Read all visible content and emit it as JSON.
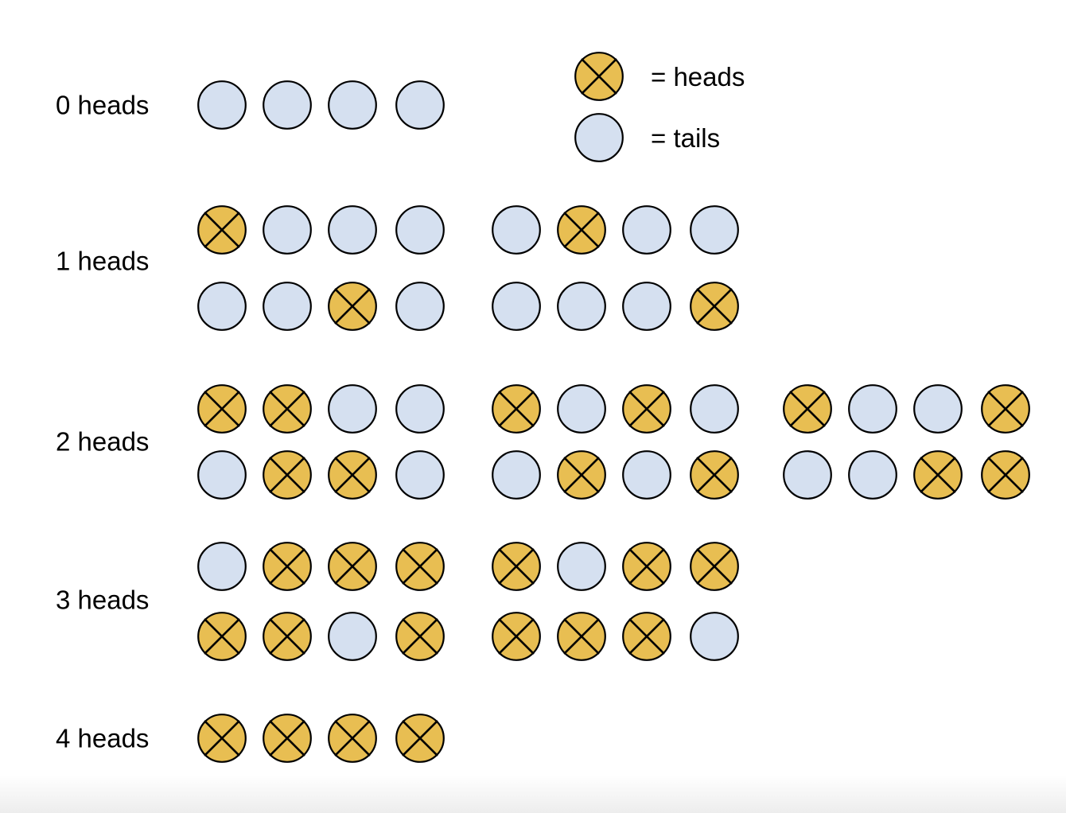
{
  "colors": {
    "heads_fill": "#E8BE52",
    "tails_fill": "#D5E0F0",
    "outline": "#000000",
    "background": "#FFFFFF"
  },
  "legend": {
    "items": [
      {
        "coin": "H",
        "label": "= heads"
      },
      {
        "coin": "T",
        "label": "= tails"
      }
    ]
  },
  "coin_meaning": {
    "H": "heads",
    "T": "tails"
  },
  "rows": [
    {
      "label": "0 heads",
      "lines": [
        [
          "TTTT"
        ]
      ]
    },
    {
      "label": "1 heads",
      "lines": [
        [
          "HTTT",
          "THTT"
        ],
        [
          "TTHT",
          "TTTH"
        ]
      ]
    },
    {
      "label": "2 heads",
      "lines": [
        [
          "HHTT",
          "HTHT",
          "HTTH"
        ],
        [
          "THHT",
          "THTH",
          "TTHH"
        ]
      ]
    },
    {
      "label": "3 heads",
      "lines": [
        [
          "THHH",
          "HTHH"
        ],
        [
          "HHTH",
          "HHHT"
        ]
      ]
    },
    {
      "label": "4 heads",
      "lines": [
        [
          "HHHH"
        ]
      ]
    }
  ]
}
